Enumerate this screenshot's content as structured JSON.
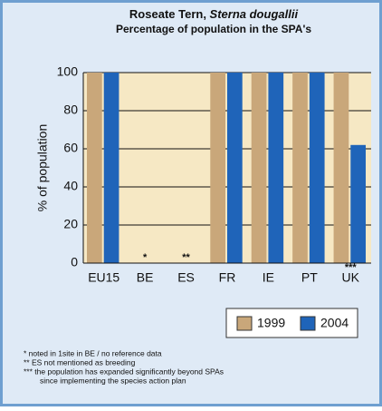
{
  "chart_data": {
    "type": "bar",
    "title": "Roseate Tern, ",
    "title_species": "Sterna dougallii",
    "subtitle": "Percentage of population in the SPA's",
    "y_label": "% of population",
    "categories": [
      "EU15",
      "BE",
      "ES",
      "FR",
      "IE",
      "PT",
      "UK"
    ],
    "category_marks": [
      null,
      "*",
      "**",
      null,
      null,
      null,
      "***"
    ],
    "series": [
      {
        "name": "1999",
        "color": "#c9a77a",
        "values": [
          100,
          0,
          0,
          100,
          100,
          100,
          100
        ]
      },
      {
        "name": "2004",
        "color": "#1f64b9",
        "values": [
          100,
          0,
          0,
          100,
          100,
          100,
          62
        ]
      }
    ],
    "ylim": [
      0,
      100
    ],
    "yticks": [
      0,
      20,
      40,
      60,
      80,
      100
    ],
    "grid": true,
    "notes": [
      "* noted in 1site in BE / no reference data",
      "** ES not mentioned as breeding",
      "*** the population has expanded significantly beyond SPAs",
      "since implementing the species action plan"
    ]
  }
}
